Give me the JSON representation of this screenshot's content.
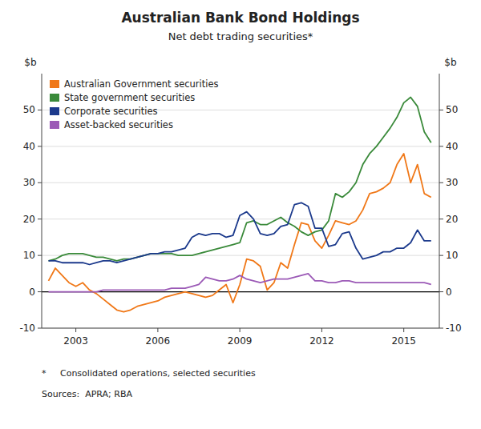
{
  "chart_data": {
    "type": "line",
    "title": "Australian Bank Bond Holdings",
    "subtitle": "Net debt trading securities*",
    "ylabel": "$b",
    "y2label": "$b",
    "footnote": "*     Consolidated operations, selected securities",
    "source": "Sources:  APRA; RBA",
    "xlim": [
      2001.75,
      2016.3
    ],
    "xticks": [
      2003,
      2006,
      2009,
      2012,
      2015
    ],
    "ylim": [
      -10,
      60
    ],
    "yticks": [
      -10,
      0,
      10,
      20,
      30,
      40,
      50
    ],
    "y2lim": [
      -10,
      60
    ],
    "y2ticks": [
      -10,
      0,
      10,
      20,
      30,
      40,
      50
    ],
    "grid": true,
    "legend": "top-left",
    "x": [
      2002.0,
      2002.25,
      2002.5,
      2002.75,
      2003.0,
      2003.25,
      2003.5,
      2003.75,
      2004.0,
      2004.25,
      2004.5,
      2004.75,
      2005.0,
      2005.25,
      2005.5,
      2005.75,
      2006.0,
      2006.25,
      2006.5,
      2006.75,
      2007.0,
      2007.25,
      2007.5,
      2007.75,
      2008.0,
      2008.25,
      2008.5,
      2008.75,
      2009.0,
      2009.25,
      2009.5,
      2009.75,
      2010.0,
      2010.25,
      2010.5,
      2010.75,
      2011.0,
      2011.25,
      2011.5,
      2011.75,
      2012.0,
      2012.25,
      2012.5,
      2012.75,
      2013.0,
      2013.25,
      2013.5,
      2013.75,
      2014.0,
      2014.25,
      2014.5,
      2014.75,
      2015.0,
      2015.25,
      2015.5,
      2015.75,
      2016.0
    ],
    "series": [
      {
        "name": "Australian Government securities",
        "color": "#F07818",
        "values": [
          3.0,
          6.5,
          4.5,
          2.5,
          1.5,
          2.5,
          0.5,
          -0.5,
          -2.0,
          -3.5,
          -5.0,
          -5.5,
          -5.0,
          -4.0,
          -3.5,
          -3.0,
          -2.5,
          -1.5,
          -1.0,
          -0.5,
          0.0,
          -0.5,
          -1.0,
          -1.5,
          -1.0,
          0.5,
          2.0,
          -3.0,
          2.0,
          9.0,
          8.5,
          7.0,
          0.5,
          2.5,
          8.0,
          6.5,
          13.0,
          19.0,
          18.5,
          14.0,
          12.0,
          15.5,
          19.5,
          19.0,
          18.5,
          19.5,
          22.5,
          27.0,
          27.5,
          28.5,
          30.0,
          35.0,
          38.0,
          30.0,
          35.0,
          27.0,
          26.0
        ]
      },
      {
        "name": "State government securities",
        "color": "#3A8A3A",
        "values": [
          8.5,
          9.0,
          10.0,
          10.5,
          10.5,
          10.5,
          10.0,
          9.5,
          9.5,
          9.0,
          8.5,
          9.0,
          9.0,
          9.5,
          10.0,
          10.5,
          10.5,
          10.5,
          10.5,
          10.0,
          10.0,
          10.0,
          10.5,
          11.0,
          11.5,
          12.0,
          12.5,
          13.0,
          13.5,
          19.0,
          19.5,
          18.5,
          18.5,
          19.5,
          20.5,
          19.0,
          18.0,
          16.5,
          15.5,
          16.5,
          17.0,
          19.5,
          27.0,
          26.0,
          27.5,
          30.0,
          35.0,
          38.0,
          40.0,
          42.5,
          45.0,
          48.0,
          52.0,
          53.5,
          51.0,
          44.0,
          41.0
        ]
      },
      {
        "name": "Corporate securities",
        "color": "#1C3A8C",
        "values": [
          8.5,
          8.5,
          8.0,
          8.0,
          8.0,
          8.0,
          7.5,
          8.0,
          8.5,
          8.5,
          8.0,
          8.5,
          9.0,
          9.5,
          10.0,
          10.5,
          10.5,
          11.0,
          11.0,
          11.5,
          12.0,
          15.0,
          16.0,
          15.5,
          16.0,
          16.0,
          15.0,
          15.5,
          21.0,
          22.0,
          20.0,
          16.0,
          15.5,
          16.0,
          18.0,
          18.5,
          24.0,
          24.5,
          23.5,
          17.5,
          17.5,
          12.5,
          13.0,
          16.0,
          16.5,
          12.0,
          9.0,
          9.5,
          10.0,
          11.0,
          11.0,
          12.0,
          12.0,
          13.5,
          17.0,
          14.0,
          14.0
        ]
      },
      {
        "name": "Asset-backed securities",
        "color": "#9B59B6",
        "values": [
          0.0,
          0.0,
          0.0,
          0.0,
          0.0,
          0.0,
          0.0,
          0.0,
          0.5,
          0.5,
          0.5,
          0.5,
          0.5,
          0.5,
          0.5,
          0.5,
          0.5,
          0.5,
          1.0,
          1.0,
          1.0,
          1.5,
          2.0,
          4.0,
          3.5,
          3.0,
          3.0,
          3.5,
          4.5,
          3.5,
          3.0,
          2.5,
          3.0,
          3.5,
          3.5,
          3.5,
          4.0,
          4.5,
          5.0,
          3.0,
          3.0,
          2.5,
          2.5,
          3.0,
          3.0,
          2.5,
          2.5,
          2.5,
          2.5,
          2.5,
          2.5,
          2.5,
          2.5,
          2.5,
          2.5,
          2.5,
          2.0
        ]
      }
    ]
  }
}
